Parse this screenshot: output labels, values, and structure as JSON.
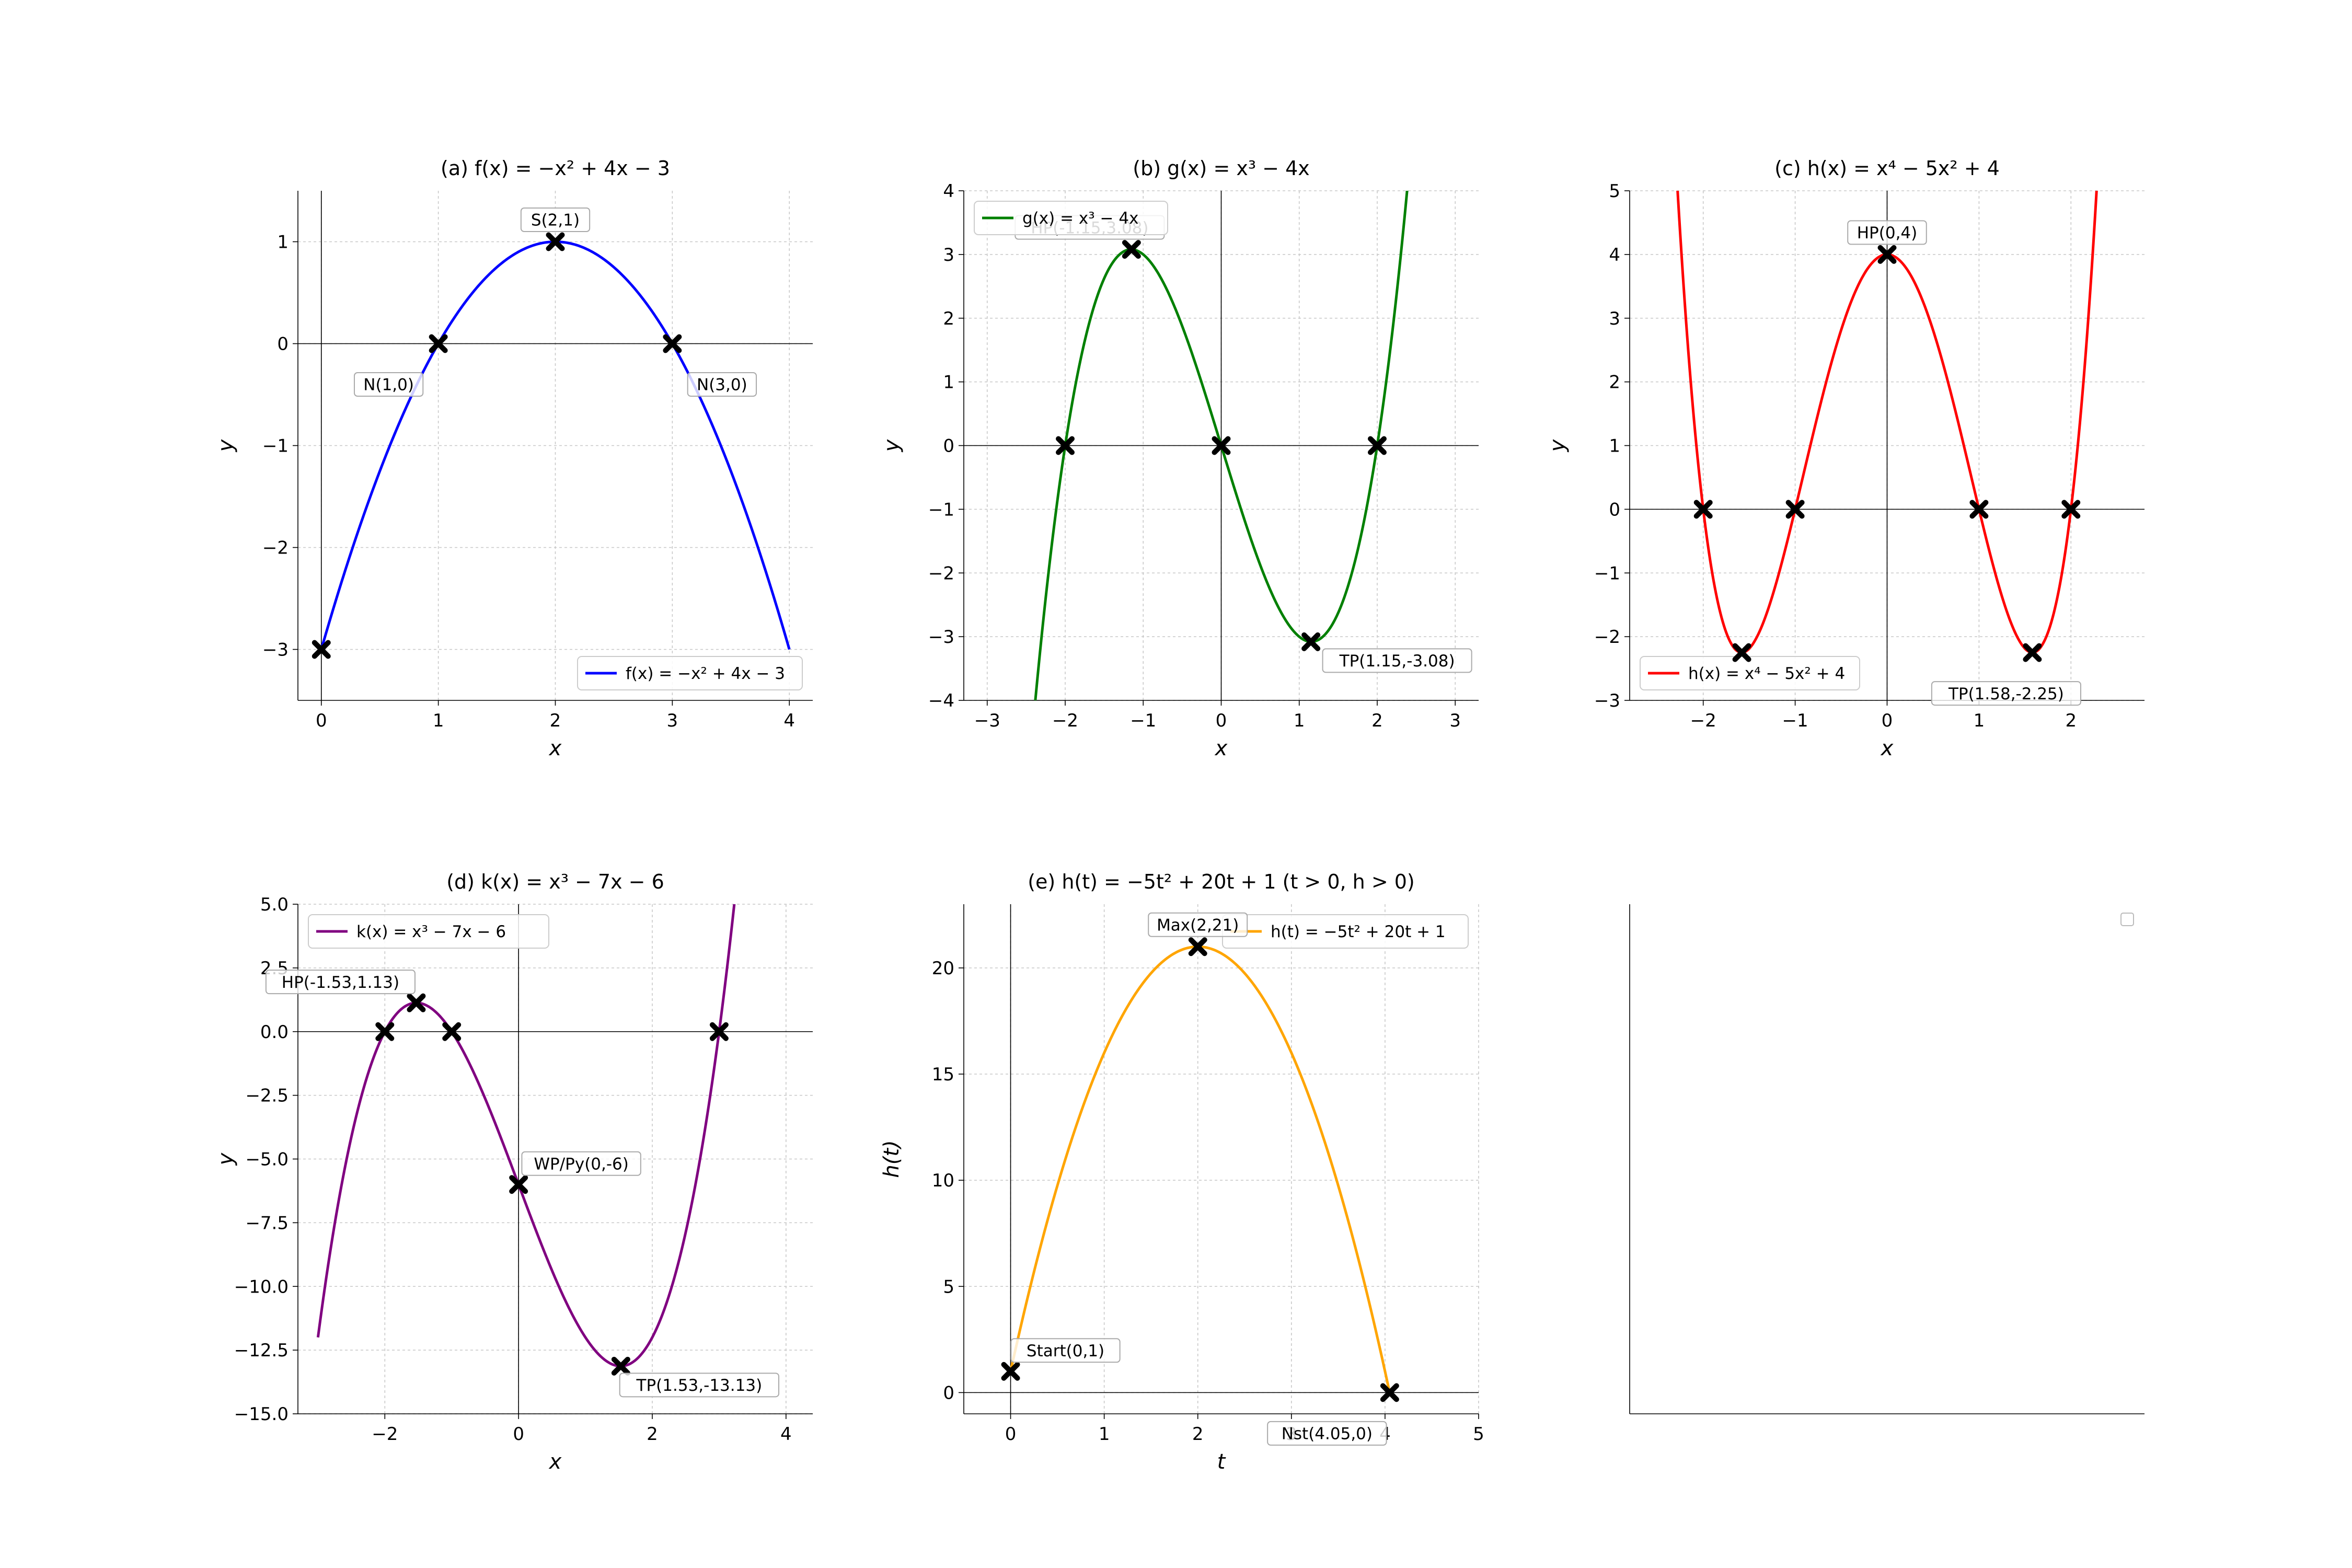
{
  "chart_data": [
    {
      "id": "a",
      "type": "line",
      "title": "(a) f(x) = −x² + 4x − 3",
      "xlabel": "x",
      "ylabel": "y",
      "xlim": [
        -0.2,
        4.2
      ],
      "ylim": [
        -3.5,
        1.5
      ],
      "xticks": [
        0,
        1,
        2,
        3,
        4
      ],
      "yticks": [
        -3,
        -2,
        -1,
        0,
        1
      ],
      "grid": true,
      "legend_position": "lower right",
      "series": [
        {
          "name": "f(x) = −x² + 4x − 3",
          "color": "#0000ff",
          "expr": "-x*x+4*x-3",
          "domain": [
            0,
            4
          ]
        }
      ],
      "points": [
        {
          "x": 2,
          "y": 1,
          "label": "S(2,1)",
          "label_pos": "above"
        },
        {
          "x": 1,
          "y": 0,
          "label": "N(1,0)",
          "label_pos": "below-left"
        },
        {
          "x": 3,
          "y": 0,
          "label": "N(3,0)",
          "label_pos": "below-right"
        },
        {
          "x": 0,
          "y": -3,
          "label": "",
          "label_pos": "none"
        }
      ]
    },
    {
      "id": "b",
      "type": "line",
      "title": "(b) g(x) = x³ − 4x",
      "xlabel": "x",
      "ylabel": "y",
      "xlim": [
        -3.3,
        3.3
      ],
      "ylim": [
        -4,
        4
      ],
      "xticks": [
        -3,
        -2,
        -1,
        0,
        1,
        2,
        3
      ],
      "yticks": [
        -4,
        -3,
        -2,
        -1,
        0,
        1,
        2,
        3,
        4
      ],
      "grid": true,
      "legend_position": "upper left",
      "series": [
        {
          "name": "g(x) = x³ − 4x",
          "color": "#008000",
          "expr": "x*x*x-4*x",
          "domain": [
            -2.6,
            2.6
          ]
        }
      ],
      "points": [
        {
          "x": -1.15,
          "y": 3.08,
          "label": "HP(-1.15,3.08)",
          "label_pos": "hidden"
        },
        {
          "x": 1.15,
          "y": -3.08,
          "label": "TP(1.15,-3.08)",
          "label_pos": "below-right"
        },
        {
          "x": -2,
          "y": 0,
          "label": "",
          "label_pos": "none"
        },
        {
          "x": 0,
          "y": 0,
          "label": "",
          "label_pos": "none"
        },
        {
          "x": 2,
          "y": 0,
          "label": "",
          "label_pos": "none"
        }
      ]
    },
    {
      "id": "c",
      "type": "line",
      "title": "(c) h(x) = x⁴ − 5x² + 4",
      "xlabel": "x",
      "ylabel": "y",
      "xlim": [
        -2.8,
        2.8
      ],
      "ylim": [
        -3,
        5
      ],
      "xticks": [
        -2,
        -1,
        0,
        1,
        2
      ],
      "yticks": [
        -3,
        -2,
        -1,
        0,
        1,
        2,
        3,
        4,
        5
      ],
      "grid": true,
      "legend_position": "lower left",
      "series": [
        {
          "name": "h(x) = x⁴ − 5x² + 4",
          "color": "#ff0000",
          "expr": "x*x*x*x-5*x*x+4",
          "domain": [
            -2.5,
            2.5
          ]
        }
      ],
      "points": [
        {
          "x": 0,
          "y": 4,
          "label": "HP(0,4)",
          "label_pos": "above"
        },
        {
          "x": 1.58,
          "y": -2.25,
          "label": "TP(1.58,-2.25)",
          "label_pos": "below"
        },
        {
          "x": -1.58,
          "y": -2.25,
          "label": "",
          "label_pos": "none"
        },
        {
          "x": -2,
          "y": 0,
          "label": "",
          "label_pos": "none"
        },
        {
          "x": -1,
          "y": 0,
          "label": "",
          "label_pos": "none"
        },
        {
          "x": 1,
          "y": 0,
          "label": "",
          "label_pos": "none"
        },
        {
          "x": 2,
          "y": 0,
          "label": "",
          "label_pos": "none"
        }
      ]
    },
    {
      "id": "d",
      "type": "line",
      "title": "(d) k(x) = x³ − 7x − 6",
      "xlabel": "x",
      "ylabel": "y",
      "xlim": [
        -3.3,
        4.4
      ],
      "ylim": [
        -15,
        5
      ],
      "xticks": [
        -2,
        0,
        2,
        4
      ],
      "yticks": [
        -15,
        -12.5,
        -10,
        -7.5,
        -5,
        -2.5,
        0,
        2.5,
        5
      ],
      "ytick_labels": [
        "−15.0",
        "−12.5",
        "−10.0",
        "−7.5",
        "−5.0",
        "−2.5",
        "0.0",
        "2.5",
        "5.0"
      ],
      "grid": true,
      "legend_position": "upper left",
      "series": [
        {
          "name": "k(x) = x³ − 7x − 6",
          "color": "#800080",
          "expr": "x*x*x-7*x-6",
          "domain": [
            -3,
            3.3
          ]
        }
      ],
      "points": [
        {
          "x": -1.53,
          "y": 1.13,
          "label": "HP(-1.53,1.13)",
          "label_pos": "above-left"
        },
        {
          "x": 0,
          "y": -6,
          "label": "WP/Py(0,-6)",
          "label_pos": "above-right"
        },
        {
          "x": 1.53,
          "y": -13.13,
          "label": "TP(1.53,-13.13)",
          "label_pos": "below-right"
        },
        {
          "x": -2,
          "y": 0,
          "label": "",
          "label_pos": "none"
        },
        {
          "x": -1,
          "y": 0,
          "label": "",
          "label_pos": "none"
        },
        {
          "x": 3,
          "y": 0,
          "label": "",
          "label_pos": "none"
        }
      ]
    },
    {
      "id": "e",
      "type": "line",
      "title": "(e) h(t) = −5t² + 20t + 1  (t > 0, h > 0)",
      "xlabel": "t",
      "ylabel": "h(t)",
      "xlim": [
        -0.5,
        5
      ],
      "ylim": [
        -1,
        23
      ],
      "xticks": [
        0,
        1,
        2,
        3,
        4,
        5
      ],
      "yticks": [
        0,
        5,
        10,
        15,
        20
      ],
      "grid": true,
      "legend_position": "upper right",
      "series": [
        {
          "name": "h(t) = −5t² + 20t + 1",
          "color": "#ffa500",
          "expr": "-5*x*x+20*x+1",
          "domain": [
            0,
            4.05
          ]
        }
      ],
      "points": [
        {
          "x": 0,
          "y": 1,
          "label": "Start(0,1)",
          "label_pos": "above-right"
        },
        {
          "x": 2,
          "y": 21,
          "label": "Max(2,21)",
          "label_pos": "above"
        },
        {
          "x": 4.05,
          "y": 0,
          "label": "Nst(4.05,0)",
          "label_pos": "below-left"
        }
      ]
    },
    {
      "id": "f",
      "type": "line",
      "title": "",
      "empty": true,
      "legend_position": "upper right",
      "series": []
    }
  ]
}
